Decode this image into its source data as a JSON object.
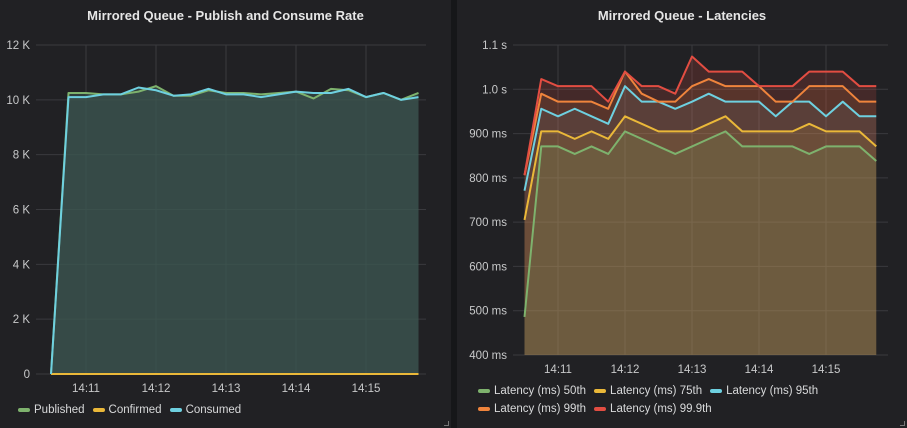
{
  "chart_data": [
    {
      "type": "area",
      "title": "Mirrored Queue - Publish and Consume Rate",
      "x": [
        "14:10:30",
        "14:10:45",
        "14:11:00",
        "14:11:15",
        "14:11:30",
        "14:11:45",
        "14:12:00",
        "14:12:15",
        "14:12:30",
        "14:12:45",
        "14:13:00",
        "14:13:15",
        "14:13:30",
        "14:13:45",
        "14:14:00",
        "14:14:15",
        "14:14:30",
        "14:14:45",
        "14:15:00",
        "14:15:15",
        "14:15:30",
        "14:15:45"
      ],
      "x_ticks": [
        "14:11",
        "14:12",
        "14:13",
        "14:14",
        "14:15"
      ],
      "y_ticks": [
        "0",
        "2 K",
        "4 K",
        "6 K",
        "8 K",
        "10 K",
        "12 K"
      ],
      "ylim": [
        0,
        12000
      ],
      "grid": true,
      "legend_position": "bottom",
      "series": [
        {
          "name": "Published",
          "color": "#7eb26d",
          "values": [
            0,
            10250,
            10250,
            10200,
            10200,
            10300,
            10500,
            10150,
            10150,
            10350,
            10250,
            10250,
            10200,
            10250,
            10300,
            10050,
            10400,
            10350,
            10100,
            10250,
            10000,
            10250
          ]
        },
        {
          "name": "Confirmed",
          "color": "#eab839",
          "values": [
            0,
            0,
            0,
            0,
            0,
            0,
            0,
            0,
            0,
            0,
            0,
            0,
            0,
            0,
            0,
            0,
            0,
            0,
            0,
            0,
            0,
            0
          ]
        },
        {
          "name": "Consumed",
          "color": "#6ed0e0",
          "values": [
            0,
            10100,
            10100,
            10200,
            10200,
            10450,
            10350,
            10150,
            10200,
            10400,
            10200,
            10200,
            10100,
            10200,
            10300,
            10250,
            10250,
            10400,
            10100,
            10250,
            10000,
            10100
          ]
        }
      ]
    },
    {
      "type": "area",
      "title": "Mirrored Queue - Latencies",
      "x": [
        "14:10:30",
        "14:10:45",
        "14:11:00",
        "14:11:15",
        "14:11:30",
        "14:11:45",
        "14:12:00",
        "14:12:15",
        "14:12:30",
        "14:12:45",
        "14:13:00",
        "14:13:15",
        "14:13:30",
        "14:13:45",
        "14:14:00",
        "14:14:15",
        "14:14:30",
        "14:14:45",
        "14:15:00",
        "14:15:15",
        "14:15:30",
        "14:15:45"
      ],
      "x_ticks": [
        "14:11",
        "14:12",
        "14:13",
        "14:14",
        "14:15"
      ],
      "y_ticks": [
        "400 ms",
        "500 ms",
        "600 ms",
        "700 ms",
        "800 ms",
        "900 ms",
        "1.0 s",
        "1.1 s"
      ],
      "ylim": [
        400,
        1100
      ],
      "grid": true,
      "legend_position": "bottom",
      "series": [
        {
          "name": "Latency (ms) 50th",
          "color": "#7eb26d",
          "values": [
            486,
            871,
            871,
            854,
            871,
            854,
            905,
            888,
            871,
            854,
            871,
            888,
            905,
            871,
            871,
            871,
            871,
            854,
            871,
            871,
            871,
            838
          ]
        },
        {
          "name": "Latency (ms) 75th",
          "color": "#eab839",
          "values": [
            705,
            905,
            905,
            888,
            905,
            888,
            939,
            922,
            905,
            905,
            905,
            922,
            939,
            905,
            905,
            905,
            905,
            922,
            905,
            905,
            905,
            871
          ]
        },
        {
          "name": "Latency (ms) 95th",
          "color": "#6ed0e0",
          "values": [
            771,
            956,
            939,
            956,
            939,
            922,
            1007,
            972,
            972,
            956,
            972,
            990,
            972,
            972,
            972,
            939,
            972,
            972,
            939,
            972,
            939,
            939
          ]
        },
        {
          "name": "Latency (ms) 99th",
          "color": "#ef843c",
          "values": [
            806,
            990,
            972,
            972,
            972,
            956,
            1040,
            990,
            972,
            972,
            1007,
            1023,
            1007,
            1007,
            1007,
            972,
            972,
            1007,
            1007,
            1007,
            972,
            972
          ]
        },
        {
          "name": "Latency (ms) 99.9th",
          "color": "#e24d42",
          "values": [
            806,
            1023,
            1007,
            1007,
            1007,
            972,
            1040,
            1007,
            1007,
            990,
            1074,
            1040,
            1040,
            1040,
            1007,
            1007,
            1007,
            1040,
            1040,
            1040,
            1007,
            1007
          ]
        }
      ]
    }
  ]
}
